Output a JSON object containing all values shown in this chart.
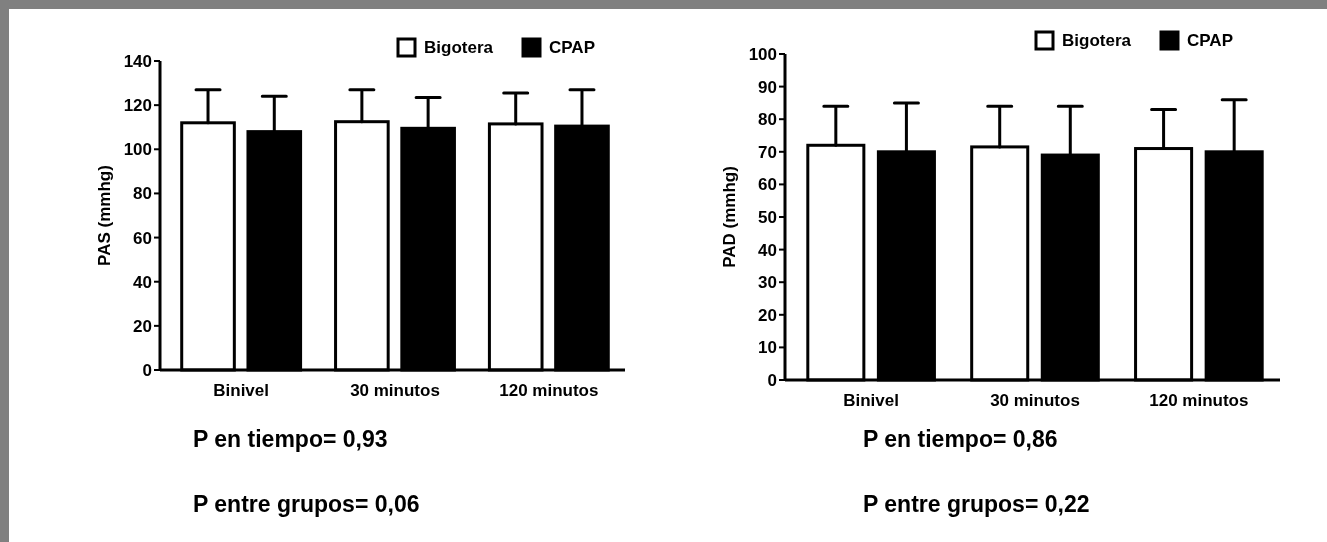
{
  "chart_data": [
    {
      "type": "bar",
      "ylabel": "PAS (mmhg)",
      "categories": [
        "Binivel",
        "30 minutos",
        "120 minutos"
      ],
      "series": [
        {
          "name": "Bigotera",
          "color": "#ffffff",
          "values": [
            112,
            112.5,
            111.5
          ],
          "errors": [
            [
              112,
              127
            ],
            [
              112.5,
              127
            ],
            [
              111.5,
              125.5
            ]
          ]
        },
        {
          "name": "CPAP",
          "color": "#000000",
          "values": [
            108,
            109.5,
            110.5
          ],
          "errors": [
            [
              108,
              124
            ],
            [
              109.5,
              123.5
            ],
            [
              110.5,
              127
            ]
          ]
        }
      ],
      "ylim": [
        0,
        140
      ],
      "yticks": [
        0,
        20,
        40,
        60,
        80,
        100,
        120,
        140
      ],
      "legend": "top right",
      "annotations": [
        "P en tiempo= 0,93",
        "P entre grupos= 0,06"
      ]
    },
    {
      "type": "bar",
      "ylabel": "PAD (mmhg)",
      "categories": [
        "Binivel",
        "30 minutos",
        "120 minutos"
      ],
      "series": [
        {
          "name": "Bigotera",
          "color": "#ffffff",
          "values": [
            72,
            71.5,
            71
          ],
          "errors": [
            [
              72,
              84
            ],
            [
              71.5,
              84
            ],
            [
              71,
              83
            ]
          ]
        },
        {
          "name": "CPAP",
          "color": "#000000",
          "values": [
            70,
            69,
            70
          ],
          "errors": [
            [
              70,
              85
            ],
            [
              69,
              84
            ],
            [
              70,
              86
            ]
          ]
        }
      ],
      "ylim": [
        0,
        100
      ],
      "yticks": [
        0,
        10,
        20,
        30,
        40,
        50,
        60,
        70,
        80,
        90,
        100
      ],
      "legend": "top right",
      "annotations": [
        "P en tiempo= 0,86",
        "P entre grupos= 0,22"
      ]
    }
  ]
}
